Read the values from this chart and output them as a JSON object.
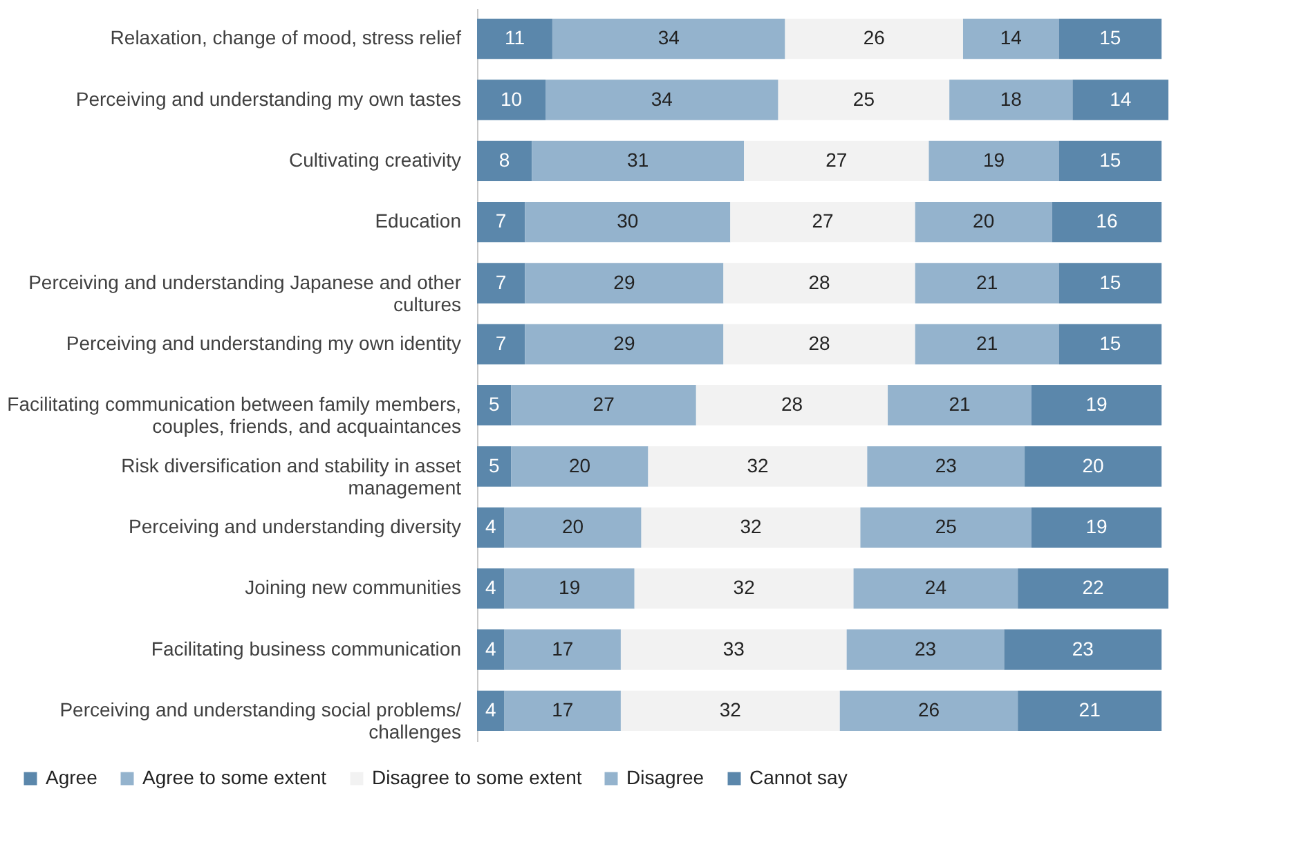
{
  "chart_data": {
    "type": "bar",
    "orientation": "horizontal",
    "stacked": true,
    "data_labels": true,
    "legend": "bottom",
    "grid": false,
    "categories": [
      "Relaxation, change of mood, stress relief",
      "Perceiving and understanding my own tastes",
      "Cultivating creativity",
      "Education",
      "Perceiving and understanding Japanese and other cultures",
      "Perceiving and understanding my own identity",
      "Facilitating communication between family members, couples, friends, and acquaintances",
      "Risk diversification and stability in asset management",
      "Perceiving and understanding diversity",
      "Joining new communities",
      "Facilitating business communication",
      "Perceiving and understanding social problems/ challenges"
    ],
    "series": [
      {
        "name": "Agree",
        "color": "#5b87ab",
        "values": [
          11,
          10,
          8,
          7,
          7,
          7,
          5,
          5,
          4,
          4,
          4,
          4
        ]
      },
      {
        "name": "Agree to some extent",
        "color": "#94b3cd",
        "values": [
          34,
          34,
          31,
          30,
          29,
          29,
          27,
          20,
          20,
          19,
          17,
          17
        ]
      },
      {
        "name": "Disagree to some extent",
        "color": "#f2f2f2",
        "values": [
          26,
          25,
          27,
          27,
          28,
          28,
          28,
          32,
          32,
          32,
          33,
          32
        ]
      },
      {
        "name": "Disagree",
        "color": "#94b3cd",
        "values": [
          14,
          18,
          19,
          20,
          21,
          21,
          21,
          23,
          25,
          24,
          23,
          26
        ]
      },
      {
        "name": "Cannot say",
        "color": "#5b87ab",
        "values": [
          15,
          14,
          15,
          16,
          15,
          15,
          19,
          20,
          19,
          22,
          23,
          21
        ]
      }
    ]
  }
}
